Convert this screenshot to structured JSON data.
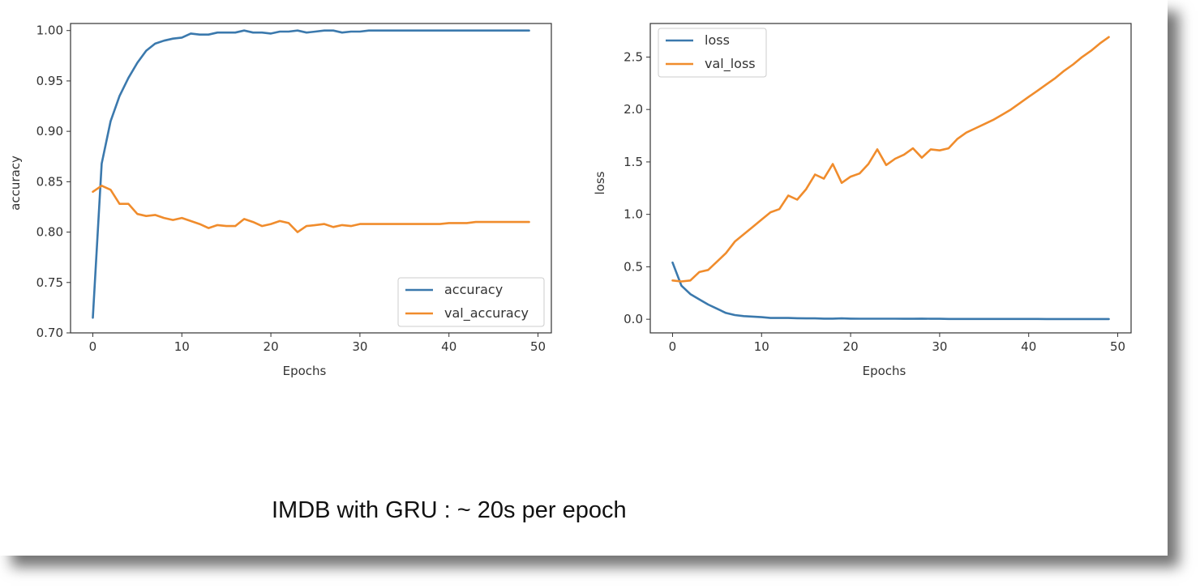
{
  "caption": "IMDB with GRU : ~ 20s per epoch",
  "colors": {
    "series1": "#3b79ad",
    "series2": "#f08c2c",
    "axis": "#333333",
    "text": "#333333"
  },
  "chart_data": [
    {
      "type": "line",
      "xlabel": "Epochs",
      "ylabel": "accuracy",
      "xlim": [
        -2.5,
        51.5
      ],
      "ylim": [
        0.7,
        1.007
      ],
      "xticks": [
        0,
        10,
        20,
        30,
        40,
        50
      ],
      "yticks": [
        0.7,
        0.75,
        0.8,
        0.85,
        0.9,
        0.95,
        1.0
      ],
      "ytick_labels": [
        "0.70",
        "0.75",
        "0.80",
        "0.85",
        "0.90",
        "0.95",
        "1.00"
      ],
      "legend_loc": "lower-right",
      "grid": false,
      "x": [
        0,
        1,
        2,
        3,
        4,
        5,
        6,
        7,
        8,
        9,
        10,
        11,
        12,
        13,
        14,
        15,
        16,
        17,
        18,
        19,
        20,
        21,
        22,
        23,
        24,
        25,
        26,
        27,
        28,
        29,
        30,
        31,
        32,
        33,
        34,
        35,
        36,
        37,
        38,
        39,
        40,
        41,
        42,
        43,
        44,
        45,
        46,
        47,
        48,
        49
      ],
      "series": [
        {
          "name": "accuracy",
          "values": [
            0.715,
            0.868,
            0.91,
            0.935,
            0.953,
            0.968,
            0.98,
            0.987,
            0.99,
            0.992,
            0.993,
            0.997,
            0.996,
            0.996,
            0.998,
            0.998,
            0.998,
            1.0,
            0.998,
            0.998,
            0.997,
            0.999,
            0.999,
            1.0,
            0.998,
            0.999,
            1.0,
            1.0,
            0.998,
            0.999,
            0.999,
            1.0,
            1.0,
            1.0,
            1.0,
            1.0,
            1.0,
            1.0,
            1.0,
            1.0,
            1.0,
            1.0,
            1.0,
            1.0,
            1.0,
            1.0,
            1.0,
            1.0,
            1.0,
            1.0
          ]
        },
        {
          "name": "val_accuracy",
          "values": [
            0.84,
            0.846,
            0.842,
            0.828,
            0.828,
            0.818,
            0.816,
            0.817,
            0.814,
            0.812,
            0.814,
            0.811,
            0.808,
            0.804,
            0.807,
            0.806,
            0.806,
            0.813,
            0.81,
            0.806,
            0.808,
            0.811,
            0.809,
            0.8,
            0.806,
            0.807,
            0.808,
            0.805,
            0.807,
            0.806,
            0.808,
            0.808,
            0.808,
            0.808,
            0.808,
            0.808,
            0.808,
            0.808,
            0.808,
            0.808,
            0.809,
            0.809,
            0.809,
            0.81,
            0.81,
            0.81,
            0.81,
            0.81,
            0.81,
            0.81
          ]
        }
      ]
    },
    {
      "type": "line",
      "xlabel": "Epochs",
      "ylabel": "loss",
      "xlim": [
        -2.5,
        51.5
      ],
      "ylim": [
        -0.13,
        2.82
      ],
      "xticks": [
        0,
        10,
        20,
        30,
        40,
        50
      ],
      "yticks": [
        0.0,
        0.5,
        1.0,
        1.5,
        2.0,
        2.5
      ],
      "ytick_labels": [
        "0.0",
        "0.5",
        "1.0",
        "1.5",
        "2.0",
        "2.5"
      ],
      "legend_loc": "upper-left",
      "grid": false,
      "x": [
        0,
        1,
        2,
        3,
        4,
        5,
        6,
        7,
        8,
        9,
        10,
        11,
        12,
        13,
        14,
        15,
        16,
        17,
        18,
        19,
        20,
        21,
        22,
        23,
        24,
        25,
        26,
        27,
        28,
        29,
        30,
        31,
        32,
        33,
        34,
        35,
        36,
        37,
        38,
        39,
        40,
        41,
        42,
        43,
        44,
        45,
        46,
        47,
        48,
        49
      ],
      "series": [
        {
          "name": "loss",
          "values": [
            0.54,
            0.32,
            0.24,
            0.19,
            0.14,
            0.1,
            0.06,
            0.04,
            0.03,
            0.025,
            0.02,
            0.012,
            0.012,
            0.012,
            0.01,
            0.008,
            0.008,
            0.006,
            0.006,
            0.008,
            0.006,
            0.005,
            0.005,
            0.005,
            0.005,
            0.005,
            0.004,
            0.004,
            0.006,
            0.004,
            0.004,
            0.003,
            0.003,
            0.003,
            0.003,
            0.003,
            0.003,
            0.003,
            0.003,
            0.003,
            0.003,
            0.003,
            0.002,
            0.002,
            0.002,
            0.002,
            0.002,
            0.002,
            0.002,
            0.002
          ]
        },
        {
          "name": "val_loss",
          "values": [
            0.37,
            0.36,
            0.37,
            0.45,
            0.47,
            0.55,
            0.63,
            0.74,
            0.81,
            0.88,
            0.95,
            1.02,
            1.05,
            1.18,
            1.14,
            1.24,
            1.38,
            1.34,
            1.48,
            1.3,
            1.36,
            1.39,
            1.48,
            1.62,
            1.47,
            1.53,
            1.57,
            1.63,
            1.54,
            1.62,
            1.61,
            1.63,
            1.72,
            1.78,
            1.82,
            1.86,
            1.9,
            1.95,
            2.0,
            2.06,
            2.12,
            2.18,
            2.24,
            2.3,
            2.37,
            2.43,
            2.5,
            2.56,
            2.63,
            2.69
          ]
        }
      ]
    }
  ]
}
